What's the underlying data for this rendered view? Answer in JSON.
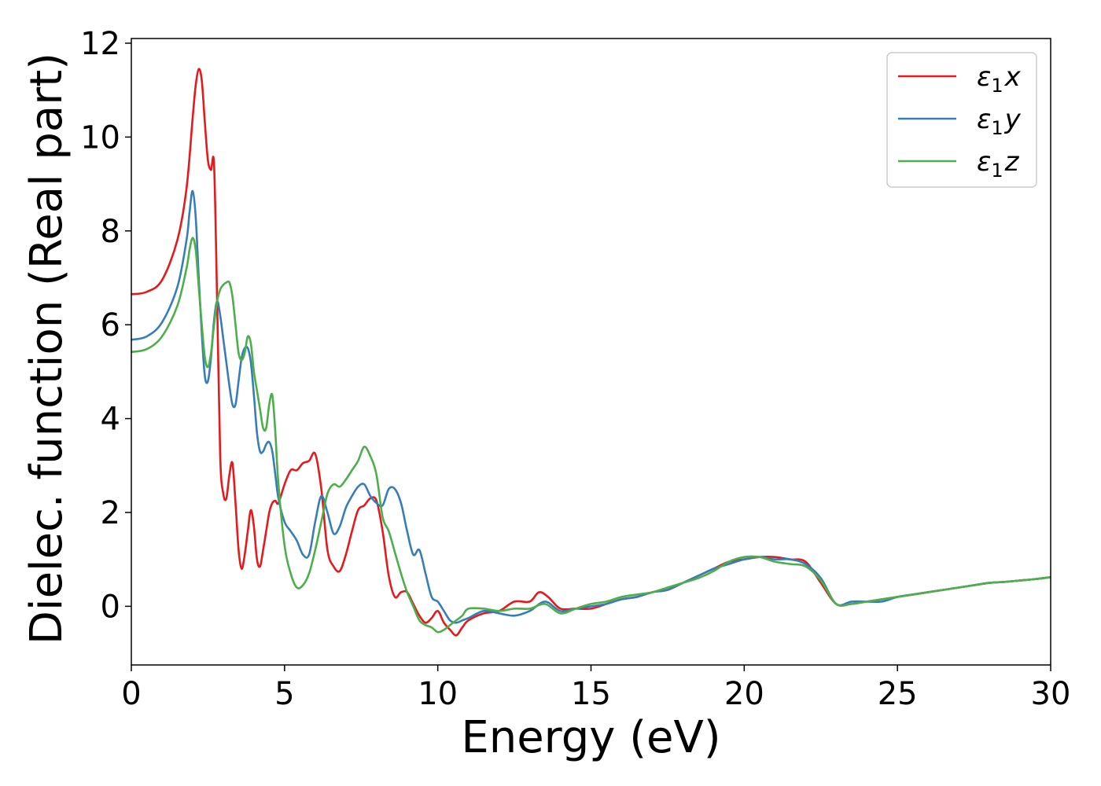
{
  "chart_data": {
    "type": "line",
    "xlabel": "Energy (eV)",
    "ylabel": "Dielec. function (Real part)",
    "xlim": [
      0,
      30
    ],
    "ylim": [
      -1.25,
      12.1
    ],
    "xticks": [
      0,
      5,
      10,
      15,
      20,
      25,
      30
    ],
    "yticks": [
      0,
      2,
      4,
      6,
      8,
      10,
      12
    ],
    "xtick_labels": [
      "0",
      "5",
      "10",
      "15",
      "20",
      "25",
      "30"
    ],
    "ytick_labels": [
      "0",
      "2",
      "4",
      "6",
      "8",
      "10",
      "12"
    ],
    "grid": false,
    "legend_position": "top-right",
    "series": [
      {
        "name": "ε₁x",
        "legend_base": "ε",
        "legend_sub": "1",
        "legend_var": "x",
        "color": "#e41a1c",
        "x": [
          0,
          0.5,
          1.0,
          1.5,
          1.8,
          2.0,
          2.1,
          2.2,
          2.3,
          2.4,
          2.5,
          2.6,
          2.7,
          2.8,
          2.9,
          3.0,
          3.1,
          3.2,
          3.3,
          3.4,
          3.5,
          3.6,
          3.7,
          3.8,
          3.9,
          4.0,
          4.1,
          4.2,
          4.3,
          4.4,
          4.5,
          4.6,
          4.7,
          4.8,
          5.0,
          5.2,
          5.4,
          5.6,
          5.8,
          6.0,
          6.2,
          6.4,
          6.6,
          6.8,
          7.0,
          7.2,
          7.4,
          7.6,
          7.8,
          8.0,
          8.2,
          8.4,
          8.6,
          8.8,
          9.0,
          9.2,
          9.4,
          9.6,
          9.8,
          10.0,
          10.2,
          10.4,
          10.6,
          10.8,
          11.0,
          11.5,
          12.0,
          12.5,
          13.0,
          13.3,
          13.6,
          14.0,
          14.5,
          15.0,
          15.5,
          16.0,
          16.5,
          17.0,
          17.5,
          18.0,
          18.5,
          19.0,
          19.5,
          20.0,
          20.5,
          21.0,
          21.5,
          22.0,
          22.5,
          23.0,
          23.5,
          24.0,
          24.5,
          25.0,
          25.5,
          26.0,
          26.5,
          27.0,
          27.5,
          28.0,
          28.5,
          29.0,
          29.5,
          30.0
        ],
        "y": [
          6.65,
          6.7,
          6.95,
          7.8,
          8.9,
          10.4,
          11.1,
          11.45,
          11.2,
          10.3,
          9.5,
          9.3,
          9.4,
          6.5,
          3.2,
          2.4,
          2.3,
          2.8,
          3.05,
          2.2,
          1.2,
          0.8,
          1.1,
          1.6,
          2.05,
          1.7,
          1.0,
          0.85,
          1.2,
          1.6,
          2.0,
          2.2,
          2.25,
          2.2,
          2.6,
          2.9,
          2.9,
          3.05,
          3.1,
          3.25,
          2.5,
          1.2,
          0.85,
          0.75,
          1.1,
          1.6,
          2.05,
          2.15,
          2.3,
          2.25,
          1.6,
          0.65,
          0.2,
          0.3,
          0.3,
          0.05,
          -0.2,
          -0.35,
          -0.25,
          -0.1,
          -0.35,
          -0.5,
          -0.62,
          -0.45,
          -0.3,
          -0.15,
          -0.1,
          0.1,
          0.1,
          0.3,
          0.2,
          -0.05,
          -0.05,
          -0.05,
          0.05,
          0.15,
          0.2,
          0.3,
          0.35,
          0.5,
          0.65,
          0.8,
          0.95,
          1.0,
          1.05,
          1.05,
          1.0,
          0.95,
          0.5,
          0.05,
          0.05,
          0.1,
          0.15,
          0.2,
          0.25,
          0.3,
          0.35,
          0.4,
          0.45,
          0.5,
          0.52,
          0.55,
          0.58,
          0.62
        ]
      },
      {
        "name": "ε₁y",
        "legend_base": "ε",
        "legend_sub": "1",
        "legend_var": "y",
        "color": "#377eb8",
        "x": [
          0,
          0.5,
          1.0,
          1.5,
          1.8,
          1.9,
          2.0,
          2.1,
          2.2,
          2.3,
          2.4,
          2.5,
          2.6,
          2.7,
          2.8,
          2.9,
          3.0,
          3.1,
          3.2,
          3.3,
          3.4,
          3.5,
          3.6,
          3.7,
          3.8,
          3.9,
          4.0,
          4.1,
          4.2,
          4.3,
          4.4,
          4.5,
          4.6,
          4.7,
          4.8,
          5.0,
          5.2,
          5.4,
          5.6,
          5.8,
          6.0,
          6.2,
          6.4,
          6.6,
          6.8,
          7.0,
          7.2,
          7.4,
          7.6,
          7.8,
          8.0,
          8.2,
          8.4,
          8.6,
          8.8,
          9.0,
          9.2,
          9.4,
          9.6,
          9.8,
          10.0,
          10.2,
          10.4,
          10.6,
          10.8,
          11.0,
          11.5,
          12.0,
          12.5,
          13.0,
          13.5,
          14.0,
          14.5,
          15.0,
          15.5,
          16.0,
          16.5,
          17.0,
          17.5,
          18.0,
          18.5,
          19.0,
          19.5,
          20.0,
          20.5,
          21.0,
          21.5,
          22.0,
          22.5,
          23.0,
          23.5,
          24.0,
          24.5,
          25.0,
          25.5,
          26.0,
          26.5,
          27.0,
          27.5,
          28.0,
          28.5,
          29.0,
          29.5,
          30.0
        ],
        "y": [
          5.68,
          5.75,
          6.05,
          6.8,
          7.8,
          8.4,
          8.85,
          8.3,
          7.0,
          5.8,
          4.9,
          4.8,
          5.3,
          6.1,
          6.5,
          6.2,
          5.7,
          5.2,
          4.7,
          4.3,
          4.3,
          4.8,
          5.3,
          5.5,
          5.5,
          5.2,
          4.5,
          3.7,
          3.3,
          3.3,
          3.45,
          3.5,
          3.3,
          2.8,
          2.3,
          1.8,
          1.6,
          1.4,
          1.1,
          1.1,
          1.8,
          2.35,
          2.0,
          1.55,
          1.7,
          2.1,
          2.35,
          2.55,
          2.6,
          2.35,
          2.2,
          2.15,
          2.5,
          2.5,
          2.2,
          1.6,
          1.1,
          1.2,
          0.7,
          0.2,
          0.1,
          -0.1,
          -0.3,
          -0.35,
          -0.3,
          -0.25,
          -0.1,
          -0.15,
          -0.2,
          -0.1,
          0.1,
          -0.1,
          -0.05,
          0.0,
          0.05,
          0.15,
          0.2,
          0.3,
          0.35,
          0.5,
          0.65,
          0.8,
          0.9,
          1.0,
          1.05,
          1.0,
          1.0,
          0.9,
          0.6,
          0.05,
          0.1,
          0.1,
          0.1,
          0.2,
          0.25,
          0.3,
          0.35,
          0.4,
          0.45,
          0.5,
          0.52,
          0.55,
          0.58,
          0.62
        ]
      },
      {
        "name": "ε₁z",
        "legend_base": "ε",
        "legend_sub": "1",
        "legend_var": "z",
        "color": "#4daf4a",
        "x": [
          0,
          0.5,
          1.0,
          1.5,
          1.8,
          1.9,
          2.0,
          2.1,
          2.2,
          2.3,
          2.4,
          2.5,
          2.6,
          2.7,
          2.8,
          2.9,
          3.0,
          3.1,
          3.2,
          3.3,
          3.4,
          3.5,
          3.6,
          3.7,
          3.8,
          3.9,
          4.0,
          4.1,
          4.2,
          4.3,
          4.4,
          4.5,
          4.6,
          4.7,
          4.8,
          5.0,
          5.2,
          5.4,
          5.6,
          5.8,
          6.0,
          6.2,
          6.4,
          6.6,
          6.8,
          7.0,
          7.2,
          7.4,
          7.6,
          7.8,
          8.0,
          8.2,
          8.4,
          8.6,
          8.8,
          9.0,
          9.2,
          9.4,
          9.6,
          9.8,
          10.0,
          10.2,
          10.4,
          10.6,
          10.8,
          11.0,
          11.5,
          12.0,
          12.5,
          13.0,
          13.5,
          14.0,
          14.5,
          15.0,
          15.5,
          16.0,
          16.5,
          17.0,
          17.5,
          18.0,
          18.5,
          19.0,
          19.5,
          20.0,
          20.5,
          21.0,
          21.5,
          22.0,
          22.5,
          23.0,
          23.5,
          24.0,
          24.5,
          25.0,
          25.5,
          26.0,
          26.5,
          27.0,
          27.5,
          28.0,
          28.5,
          29.0,
          29.5,
          30.0
        ],
        "y": [
          5.42,
          5.48,
          5.75,
          6.4,
          7.2,
          7.6,
          7.85,
          7.6,
          6.8,
          6.0,
          5.3,
          5.1,
          5.4,
          6.0,
          6.5,
          6.75,
          6.85,
          6.9,
          6.9,
          6.6,
          6.0,
          5.4,
          5.25,
          5.4,
          5.75,
          5.6,
          5.0,
          4.6,
          4.2,
          3.8,
          3.8,
          4.3,
          4.5,
          3.7,
          2.6,
          1.3,
          0.7,
          0.4,
          0.45,
          0.7,
          1.2,
          1.8,
          2.4,
          2.6,
          2.55,
          2.7,
          2.9,
          3.1,
          3.4,
          3.2,
          2.8,
          1.9,
          1.6,
          1.15,
          0.7,
          0.3,
          0.0,
          -0.3,
          -0.4,
          -0.45,
          -0.55,
          -0.5,
          -0.4,
          -0.3,
          -0.2,
          -0.05,
          -0.05,
          -0.1,
          -0.05,
          -0.05,
          0.05,
          -0.15,
          -0.05,
          0.05,
          0.1,
          0.2,
          0.25,
          0.3,
          0.4,
          0.5,
          0.6,
          0.75,
          0.95,
          1.05,
          1.05,
          0.95,
          0.9,
          0.85,
          0.55,
          0.05,
          0.05,
          0.1,
          0.15,
          0.2,
          0.25,
          0.3,
          0.35,
          0.4,
          0.45,
          0.5,
          0.52,
          0.55,
          0.58,
          0.62
        ]
      }
    ]
  }
}
